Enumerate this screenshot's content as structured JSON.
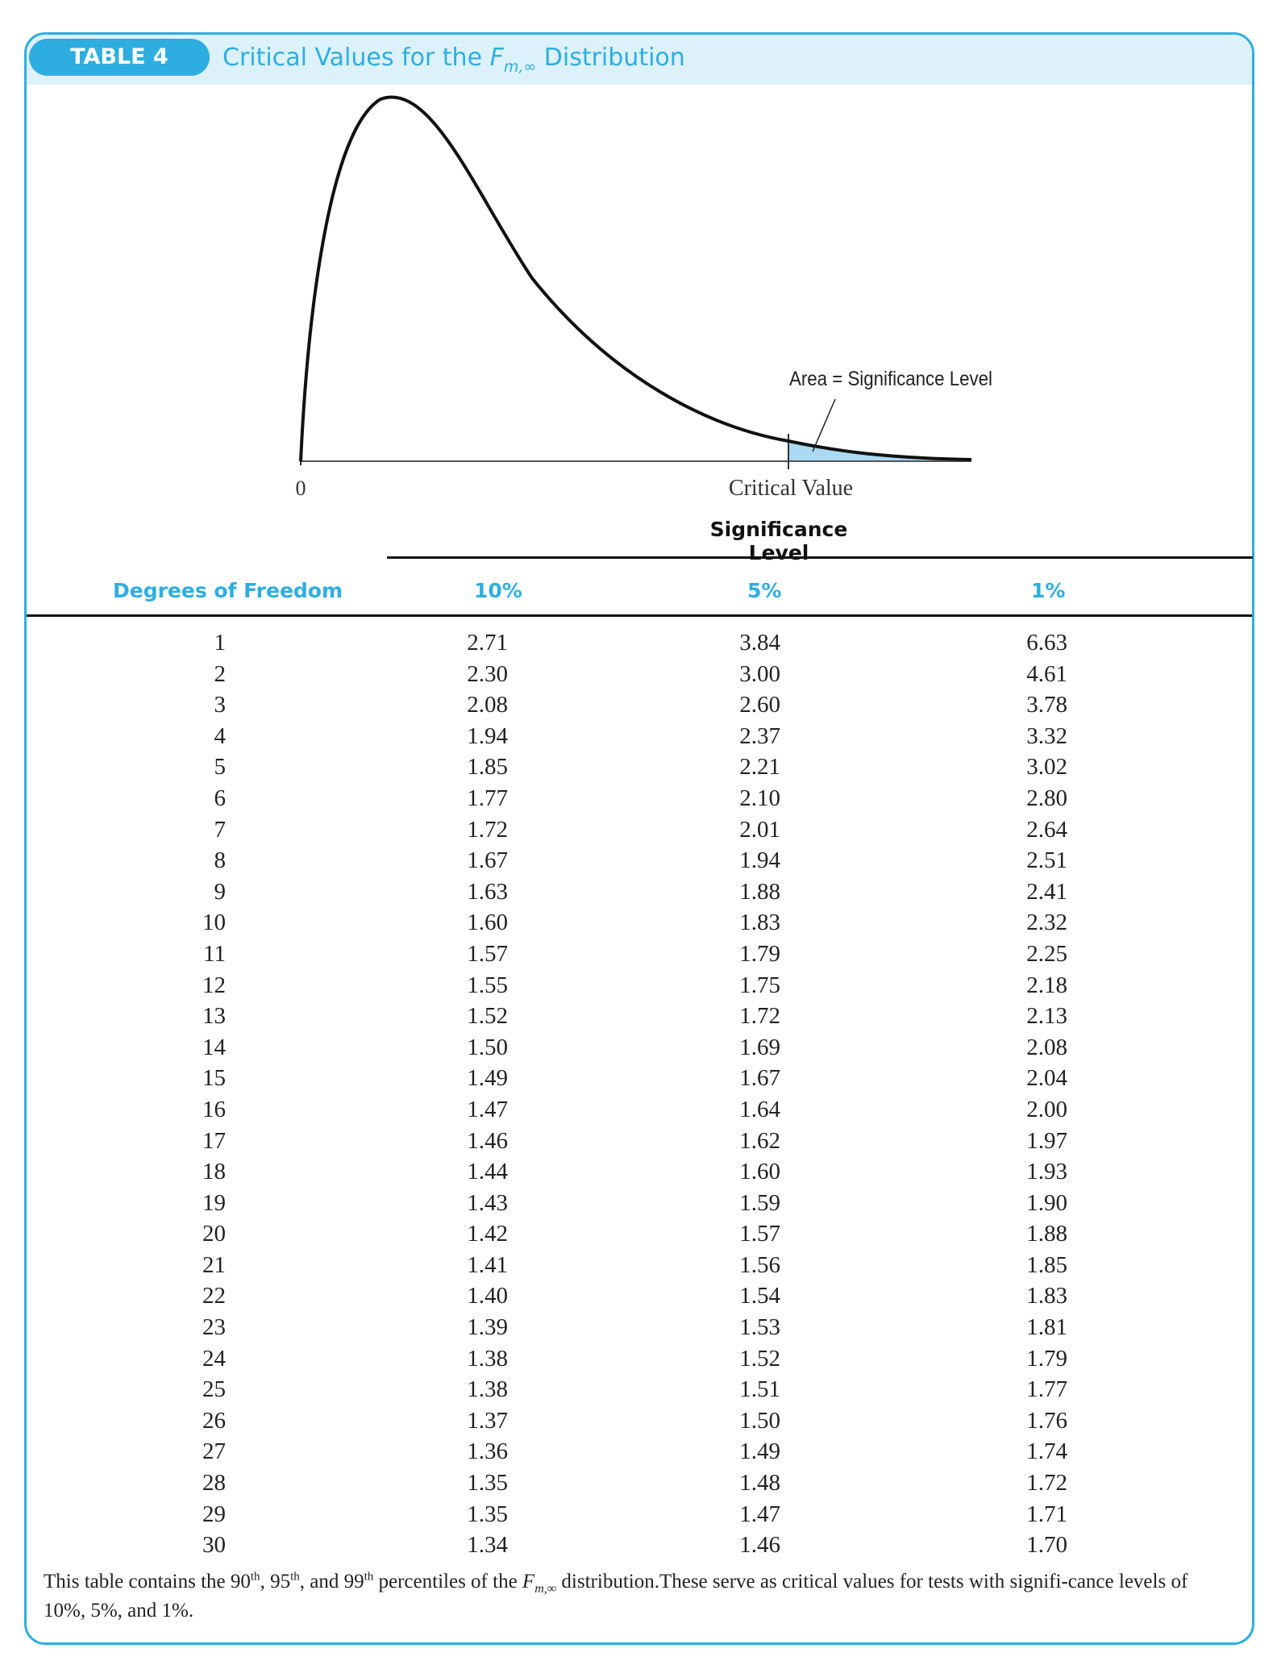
{
  "header": {
    "table_label": "TABLE 4",
    "title_prefix": "Critical Values for the ",
    "title_symbol": "F",
    "title_subscript": "m,∞",
    "title_suffix": " Distribution"
  },
  "figure": {
    "zero_label": "0",
    "area_annotation": "Area = Significance Level",
    "critical_value_label": "Critical Value",
    "shade_color": "#a9d9f3",
    "accent_color": "#2eaee0"
  },
  "table": {
    "significance_heading": "Significance Level",
    "columns": [
      "Degrees of Freedom",
      "10%",
      "5%",
      "1%"
    ],
    "rows": [
      [
        "1",
        "2.71",
        "3.84",
        "6.63"
      ],
      [
        "2",
        "2.30",
        "3.00",
        "4.61"
      ],
      [
        "3",
        "2.08",
        "2.60",
        "3.78"
      ],
      [
        "4",
        "1.94",
        "2.37",
        "3.32"
      ],
      [
        "5",
        "1.85",
        "2.21",
        "3.02"
      ],
      [
        "6",
        "1.77",
        "2.10",
        "2.80"
      ],
      [
        "7",
        "1.72",
        "2.01",
        "2.64"
      ],
      [
        "8",
        "1.67",
        "1.94",
        "2.51"
      ],
      [
        "9",
        "1.63",
        "1.88",
        "2.41"
      ],
      [
        "10",
        "1.60",
        "1.83",
        "2.32"
      ],
      [
        "11",
        "1.57",
        "1.79",
        "2.25"
      ],
      [
        "12",
        "1.55",
        "1.75",
        "2.18"
      ],
      [
        "13",
        "1.52",
        "1.72",
        "2.13"
      ],
      [
        "14",
        "1.50",
        "1.69",
        "2.08"
      ],
      [
        "15",
        "1.49",
        "1.67",
        "2.04"
      ],
      [
        "16",
        "1.47",
        "1.64",
        "2.00"
      ],
      [
        "17",
        "1.46",
        "1.62",
        "1.97"
      ],
      [
        "18",
        "1.44",
        "1.60",
        "1.93"
      ],
      [
        "19",
        "1.43",
        "1.59",
        "1.90"
      ],
      [
        "20",
        "1.42",
        "1.57",
        "1.88"
      ],
      [
        "21",
        "1.41",
        "1.56",
        "1.85"
      ],
      [
        "22",
        "1.40",
        "1.54",
        "1.83"
      ],
      [
        "23",
        "1.39",
        "1.53",
        "1.81"
      ],
      [
        "24",
        "1.38",
        "1.52",
        "1.79"
      ],
      [
        "25",
        "1.38",
        "1.51",
        "1.77"
      ],
      [
        "26",
        "1.37",
        "1.50",
        "1.76"
      ],
      [
        "27",
        "1.36",
        "1.49",
        "1.74"
      ],
      [
        "28",
        "1.35",
        "1.48",
        "1.72"
      ],
      [
        "29",
        "1.35",
        "1.47",
        "1.71"
      ],
      [
        "30",
        "1.34",
        "1.46",
        "1.70"
      ]
    ]
  },
  "footnote": {
    "part1": "This table contains the 90",
    "sup1": "th",
    "part2": ", 95",
    "sup2": "th",
    "part3": ", and 99",
    "sup3": "th",
    "part4": " percentiles of the ",
    "symbol": "F",
    "subscript": "m,∞",
    "part5": " distribution.These serve as critical values for tests with signifi-cance levels of 10%, 5%, and 1%."
  }
}
